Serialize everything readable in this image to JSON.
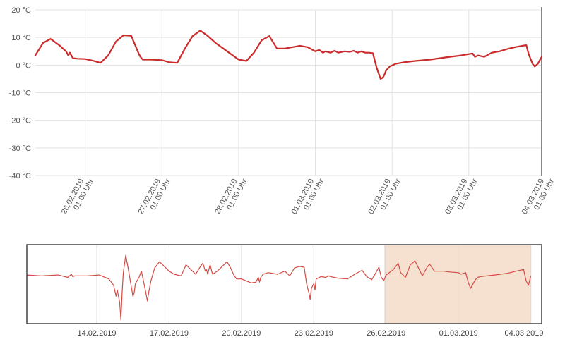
{
  "chart_data": [
    {
      "type": "line",
      "title": "",
      "xlabel": "",
      "ylabel": "",
      "ylim": [
        -40,
        20
      ],
      "yticks": [
        20,
        10,
        0,
        -10,
        -20,
        -30,
        -40
      ],
      "ytick_labels": [
        "20 °C",
        "10 °C",
        "0 °C",
        "-10 °C",
        "-20 °C",
        "-30 °C",
        "-40 °C"
      ],
      "xlim_days": [
        -0.65,
        5.95
      ],
      "xticks": [
        {
          "day": 0,
          "date": "26.02.2019",
          "time": "01.00 Uhr"
        },
        {
          "day": 1,
          "date": "27.02.2019",
          "time": "01.00 Uhr"
        },
        {
          "day": 2,
          "date": "28.02.2019",
          "time": "01.00 Uhr"
        },
        {
          "day": 3,
          "date": "01.03.2019",
          "time": "01.00 Uhr"
        },
        {
          "day": 4,
          "date": "02.03.2019",
          "time": "01.00 Uhr"
        },
        {
          "day": 5,
          "date": "03.03.2019",
          "time": "01.00 Uhr"
        },
        {
          "day": 6,
          "date": "04.03.2019",
          "time": "01.00 Uhr"
        }
      ],
      "grid": true,
      "line_color": "#cc2b2b",
      "series": [
        {
          "x": [
            -0.65,
            -0.55,
            -0.45,
            -0.33,
            -0.25,
            -0.22,
            -0.2,
            -0.16,
            -0.1,
            0.0,
            0.1,
            0.2,
            0.3,
            0.4,
            0.5,
            0.6,
            0.7,
            0.72,
            0.75,
            0.78,
            0.85,
            1.0,
            1.1,
            1.2,
            1.3,
            1.4,
            1.5,
            1.6,
            1.7,
            1.8,
            1.9,
            2.0,
            2.1,
            2.2,
            2.3,
            2.4,
            2.5,
            2.55,
            2.6,
            2.7,
            2.8,
            2.9,
            3.0,
            3.05,
            3.1,
            3.13,
            3.2,
            3.25,
            3.3,
            3.38,
            3.45,
            3.5,
            3.55,
            3.6,
            3.65,
            3.7,
            3.75,
            3.8,
            3.85,
            3.88,
            3.9,
            3.92,
            3.97,
            4.05,
            4.15,
            4.3,
            4.5,
            4.7,
            4.9,
            5.0,
            5.05,
            5.08,
            5.12,
            5.2,
            5.3,
            5.4,
            5.5,
            5.6,
            5.7,
            5.75,
            5.78,
            5.83,
            5.86,
            5.9,
            5.95
          ],
          "y": [
            3.5,
            8.0,
            9.5,
            7.0,
            5.0,
            3.5,
            4.5,
            2.5,
            2.3,
            2.2,
            1.6,
            0.8,
            3.5,
            8.5,
            10.8,
            10.6,
            4.0,
            3.0,
            2.0,
            2.0,
            2.0,
            1.8,
            1.0,
            0.8,
            6.0,
            10.5,
            12.5,
            10.5,
            8.0,
            6.0,
            4.0,
            2.0,
            1.5,
            4.5,
            9.0,
            10.5,
            6.0,
            6.0,
            6.0,
            6.5,
            7.0,
            6.5,
            5.0,
            5.5,
            4.5,
            5.0,
            4.5,
            5.2,
            4.5,
            5.0,
            4.8,
            5.2,
            4.5,
            5.0,
            4.5,
            4.5,
            4.3,
            -1.0,
            -5.0,
            -4.5,
            -3.5,
            -2.0,
            -0.5,
            0.5,
            1.0,
            1.5,
            2.0,
            2.8,
            3.5,
            4.0,
            4.2,
            3.0,
            3.5,
            3.0,
            4.5,
            5.0,
            5.8,
            6.5,
            7.0,
            7.2,
            4.0,
            0.5,
            -0.5,
            0.5,
            3.0
          ]
        }
      ]
    },
    {
      "type": "line",
      "title": "",
      "xlabel": "",
      "ylabel": "",
      "xlim_days": [
        -14.9,
        6.45
      ],
      "xticks": [
        {
          "day": -12,
          "date": "14.02.2019"
        },
        {
          "day": -9,
          "date": "17.02.2019"
        },
        {
          "day": -6,
          "date": "20.02.2019"
        },
        {
          "day": -3,
          "date": "23.02.2019"
        },
        {
          "day": 0,
          "date": "26.02.2019"
        },
        {
          "day": 3,
          "date": "01.03.2019"
        },
        {
          "day": 6,
          "date": "04.03.2019"
        }
      ],
      "selected_range_days": [
        -0.05,
        6.0
      ],
      "series": [
        {
          "x": [
            -14.9,
            -14.3,
            -13.6,
            -13.2,
            -13.05,
            -13.0,
            -12.9,
            -12.4,
            -11.9,
            -11.5,
            -11.3,
            -11.2,
            -11.15,
            -11.05,
            -11.0,
            -10.95,
            -10.9,
            -10.8,
            -10.7,
            -10.6,
            -10.5,
            -10.45,
            -10.4,
            -10.25,
            -10.15,
            -10.0,
            -9.9,
            -9.85,
            -9.75,
            -9.6,
            -9.4,
            -9.2,
            -9.0,
            -8.8,
            -8.5,
            -8.3,
            -8.1,
            -7.9,
            -7.7,
            -7.6,
            -7.5,
            -7.45,
            -7.4,
            -7.3,
            -7.2,
            -7.0,
            -6.8,
            -6.6,
            -6.45,
            -6.3,
            -6.2,
            -6.0,
            -5.6,
            -5.4,
            -5.3,
            -5.25,
            -5.2,
            -5.1,
            -4.9,
            -4.5,
            -4.2,
            -4.0,
            -3.8,
            -3.6,
            -3.4,
            -3.3,
            -3.2,
            -3.15,
            -3.1,
            -3.0,
            -2.95,
            -2.9,
            -2.7,
            -2.5,
            -2.4,
            -2.3,
            -2.0,
            -1.6,
            -1.3,
            -1.0,
            -0.8,
            -0.6,
            -0.5,
            -0.3,
            -0.2,
            -0.1,
            0.0,
            0.3,
            0.5,
            0.6,
            0.8,
            1.0,
            1.2,
            1.5,
            1.7,
            1.8,
            2.0,
            2.4,
            2.6,
            3.0,
            3.1,
            3.3,
            3.4,
            3.5,
            3.7,
            3.8,
            3.9,
            4.5,
            5.0,
            5.4,
            5.7,
            5.8,
            5.9,
            6.0
          ],
          "y": [
            3.5,
            3.0,
            3.5,
            2.0,
            4.0,
            2.5,
            3.0,
            3.0,
            3.5,
            1.0,
            -3.0,
            -10.0,
            -6.0,
            -14.0,
            -25.0,
            -8.0,
            5.0,
            16.0,
            8.0,
            -1.0,
            -10.0,
            -8.0,
            -2.0,
            2.0,
            6.0,
            -5.0,
            -13.0,
            -8.0,
            0.0,
            8.0,
            12.0,
            9.0,
            6.0,
            4.0,
            3.0,
            10.0,
            7.0,
            4.0,
            9.0,
            11.0,
            6.0,
            7.0,
            4.0,
            10.0,
            4.0,
            6.0,
            9.0,
            12.0,
            8.0,
            3.0,
            1.0,
            1.0,
            -1.5,
            -1.0,
            2.0,
            -1.0,
            2.0,
            4.0,
            5.0,
            4.0,
            6.0,
            3.0,
            8.0,
            9.0,
            8.5,
            -2.0,
            -8.0,
            -12.0,
            -5.0,
            -2.0,
            -6.0,
            1.0,
            2.5,
            2.0,
            3.0,
            2.5,
            1.5,
            1.0,
            4.0,
            6.5,
            2.5,
            0.5,
            3.0,
            8.5,
            2.0,
            0.0,
            3.5,
            7.0,
            11.0,
            5.0,
            2.0,
            10.0,
            12.5,
            3.0,
            8.5,
            10.5,
            6.0,
            6.0,
            5.5,
            5.0,
            4.0,
            5.0,
            -1.0,
            -5.0,
            0.5,
            2.0,
            2.5,
            3.5,
            4.5,
            6.0,
            7.0,
            0.0,
            -3.0,
            3.0
          ]
        }
      ]
    }
  ]
}
